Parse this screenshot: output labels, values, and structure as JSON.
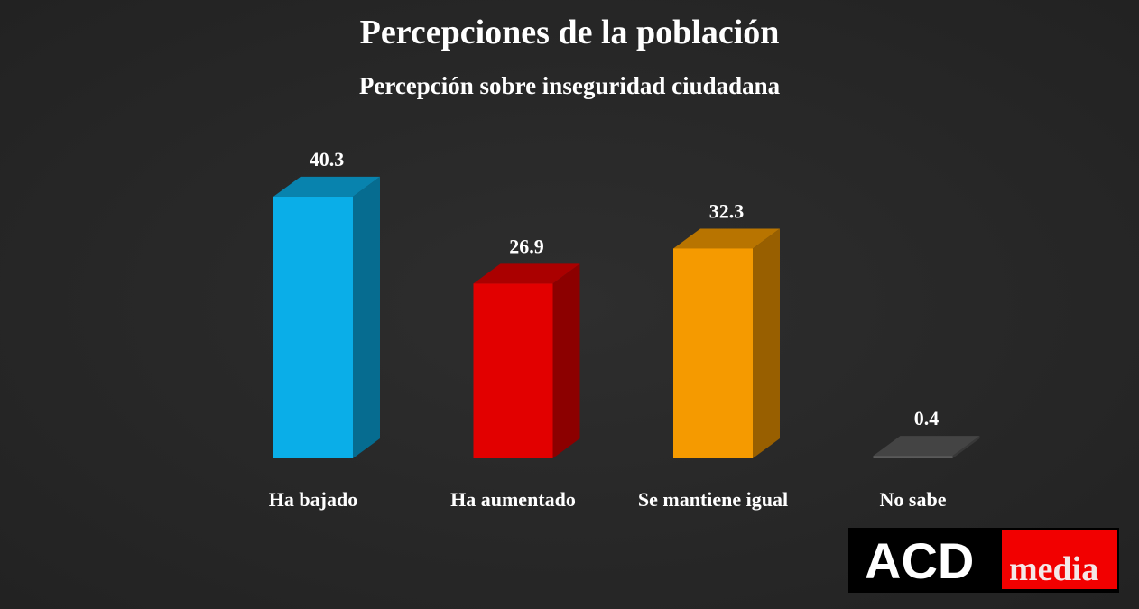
{
  "chart_data": {
    "type": "bar",
    "title": "Percepciones de la población",
    "subtitle": "Percepción sobre inseguridad ciudadana",
    "categories": [
      "Ha bajado",
      "Ha aumentado",
      "Se mantiene igual",
      "No sabe"
    ],
    "values": [
      40.3,
      26.9,
      32.3,
      0.4
    ],
    "value_labels": [
      "40.3",
      "26.9",
      "32.3",
      "0.4"
    ],
    "colors": [
      "#0aaee8",
      "#e20000",
      "#f59a00",
      "#5a5a5a"
    ],
    "xlabel": "",
    "ylabel": "",
    "ylim": [
      0,
      45
    ],
    "grid": false
  },
  "logo": {
    "left": "ACD",
    "right": "media"
  }
}
